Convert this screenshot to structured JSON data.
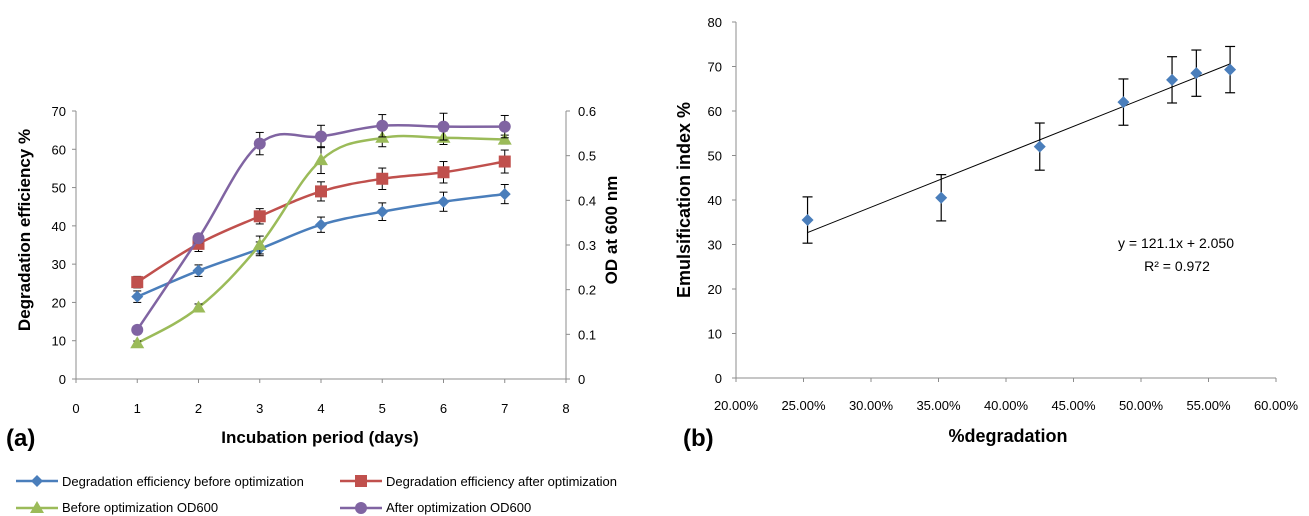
{
  "colors": {
    "blue": "#4a7ebb",
    "red": "#c0504d",
    "green": "#9bbb59",
    "purple": "#8064a2",
    "axis": "#8c8c8c",
    "text": "#000000"
  },
  "chart_data": [
    {
      "panel_label": "(a)",
      "type": "line",
      "xlabel": "Incubation period (days)",
      "ylabel": "Degradation efficiency %",
      "y2label": "OD at 600 nm",
      "xlim": [
        0,
        8
      ],
      "ylim": [
        0,
        70
      ],
      "y2lim": [
        0,
        0.6
      ],
      "x_ticks": [
        "0",
        "1",
        "2",
        "3",
        "4",
        "5",
        "6",
        "7",
        "8"
      ],
      "y_ticks": [
        "0",
        "10",
        "20",
        "30",
        "40",
        "50",
        "60",
        "70"
      ],
      "y2_ticks": [
        "0",
        "0.1",
        "0.2",
        "0.3",
        "0.4",
        "0.5",
        "0.6"
      ],
      "grid": false,
      "legend_position": "bottom",
      "series": [
        {
          "name": "Degradation efficiency before optimization",
          "axis": "left",
          "marker": "diamond",
          "color": "#4a7ebb",
          "x": [
            1,
            2,
            3,
            4,
            5,
            6,
            7
          ],
          "values": [
            21.5,
            28.3,
            34.0,
            40.3,
            43.7,
            46.3,
            48.3
          ],
          "errors": [
            1.5,
            1.5,
            1.8,
            2.0,
            2.3,
            2.5,
            2.5
          ]
        },
        {
          "name": "Degradation efficiency after optimization",
          "axis": "left",
          "marker": "square",
          "color": "#c0504d",
          "x": [
            1,
            2,
            3,
            4,
            5,
            6,
            7
          ],
          "values": [
            25.3,
            35.3,
            42.5,
            49.0,
            52.3,
            54.0,
            56.8
          ],
          "errors": [
            1.5,
            2.0,
            2.0,
            2.5,
            2.8,
            2.8,
            3.0
          ]
        },
        {
          "name": "Before optimization  OD600",
          "axis": "right",
          "marker": "triangle",
          "color": "#9bbb59",
          "x": [
            1,
            2,
            3,
            4,
            5,
            6,
            7
          ],
          "values": [
            0.08,
            0.16,
            0.3,
            0.49,
            0.54,
            0.54,
            0.536
          ],
          "errors": [
            0.005,
            0.008,
            0.02,
            0.03,
            0.02,
            0.015,
            0.01
          ]
        },
        {
          "name": "After optimization  OD600",
          "axis": "right",
          "marker": "circle",
          "color": "#8064a2",
          "x": [
            1,
            2,
            3,
            4,
            5,
            6,
            7
          ],
          "values": [
            0.11,
            0.315,
            0.527,
            0.543,
            0.567,
            0.565,
            0.565
          ],
          "errors": [
            0.004,
            0.01,
            0.025,
            0.025,
            0.025,
            0.03,
            0.025
          ]
        }
      ]
    },
    {
      "panel_label": "(b)",
      "type": "scatter",
      "xlabel": "%degradation",
      "ylabel": "Emulsification index %",
      "xlim": [
        0.2,
        0.6
      ],
      "ylim": [
        0,
        80
      ],
      "x_ticks": [
        "20.00%",
        "25.00%",
        "30.00%",
        "35.00%",
        "40.00%",
        "45.00%",
        "50.00%",
        "55.00%",
        "60.00%"
      ],
      "y_ticks": [
        "0",
        "10",
        "20",
        "30",
        "40",
        "50",
        "60",
        "70",
        "80"
      ],
      "grid": false,
      "series": [
        {
          "marker": "diamond",
          "color": "#4a7ebb",
          "x": [
            0.253,
            0.352,
            0.425,
            0.487,
            0.523,
            0.541,
            0.566
          ],
          "values": [
            35.5,
            40.5,
            52.0,
            62.0,
            67.0,
            68.5,
            69.3
          ],
          "errors": [
            5.2,
            5.2,
            5.3,
            5.2,
            5.2,
            5.2,
            5.2
          ]
        }
      ],
      "trendline": {
        "slope": 121.1,
        "intercept": 2.05,
        "x_range": [
          0.253,
          0.566
        ]
      },
      "equation": "y = 121.1x + 2.050",
      "r_squared": "R² = 0.972"
    }
  ]
}
